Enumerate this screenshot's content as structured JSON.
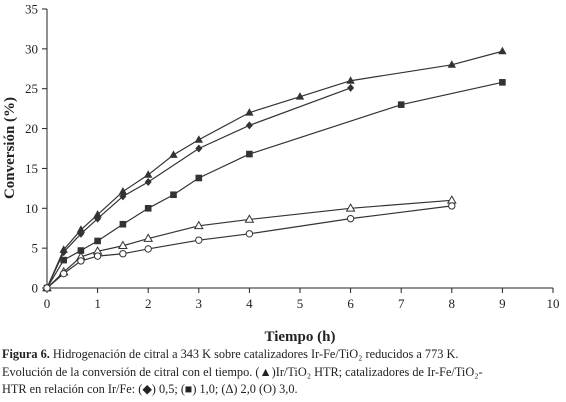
{
  "chart_data": {
    "type": "line",
    "title": "",
    "xlabel": "Tiempo (h)",
    "ylabel": "Conversión (%)",
    "xlim": [
      0,
      10
    ],
    "ylim": [
      0,
      35
    ],
    "x_ticks": [
      "0",
      "1",
      "2",
      "3",
      "4",
      "5",
      "6",
      "7",
      "8",
      "9",
      "10"
    ],
    "y_ticks": [
      "0",
      "5",
      "10",
      "15",
      "20",
      "25",
      "30",
      "35"
    ],
    "grid": false,
    "legend": "none",
    "series": [
      {
        "marker": "filled-triangle",
        "color": "#333333",
        "points": [
          [
            0,
            0
          ],
          [
            0.33,
            4.8
          ],
          [
            0.67,
            7.3
          ],
          [
            1,
            9.2
          ],
          [
            1.5,
            12.1
          ],
          [
            2,
            14.2
          ],
          [
            2.5,
            16.7
          ],
          [
            3,
            18.6
          ],
          [
            4,
            22.0
          ],
          [
            5,
            24.0
          ],
          [
            6,
            26.0
          ],
          [
            8,
            28.0
          ],
          [
            9,
            29.7
          ]
        ]
      },
      {
        "marker": "filled-diamond",
        "color": "#333333",
        "points": [
          [
            0,
            0
          ],
          [
            0.33,
            4.5
          ],
          [
            0.67,
            6.8
          ],
          [
            1,
            8.7
          ],
          [
            1.5,
            11.5
          ],
          [
            2,
            13.3
          ],
          [
            3,
            17.5
          ],
          [
            4,
            20.4
          ],
          [
            6,
            25.1
          ]
        ]
      },
      {
        "marker": "filled-square",
        "color": "#333333",
        "points": [
          [
            0,
            0
          ],
          [
            0.33,
            3.5
          ],
          [
            0.67,
            4.7
          ],
          [
            1,
            5.9
          ],
          [
            1.5,
            8.0
          ],
          [
            2,
            10.0
          ],
          [
            2.5,
            11.7
          ],
          [
            3,
            13.8
          ],
          [
            4,
            16.8
          ],
          [
            7,
            23.0
          ],
          [
            9,
            25.8
          ]
        ]
      },
      {
        "marker": "open-triangle",
        "color": "#333333",
        "points": [
          [
            0,
            0
          ],
          [
            0.33,
            2.0
          ],
          [
            0.67,
            3.9
          ],
          [
            1,
            4.6
          ],
          [
            1.5,
            5.3
          ],
          [
            2,
            6.2
          ],
          [
            3,
            7.8
          ],
          [
            4,
            8.6
          ],
          [
            6,
            10.0
          ],
          [
            8,
            11.0
          ]
        ]
      },
      {
        "marker": "open-circle",
        "color": "#333333",
        "points": [
          [
            0,
            0
          ],
          [
            0.33,
            1.8
          ],
          [
            0.67,
            3.4
          ],
          [
            1,
            4.0
          ],
          [
            1.5,
            4.3
          ],
          [
            2,
            4.9
          ],
          [
            3,
            6.0
          ],
          [
            4,
            6.8
          ],
          [
            6,
            8.7
          ],
          [
            8,
            10.3
          ]
        ]
      }
    ]
  },
  "caption": {
    "label": "Figura 6.",
    "line1": " Hidrogenación de citral a 343 K sobre catalizadores Ir-Fe/TiO₂ reducidos a 773 K.",
    "line2": "Evolución de la conversión de citral con el tiempo. (▲)Ir/TiO₂ HTR; catalizadores de Ir-Fe/TiO₂-",
    "line3": "HTR en relación con Ir/Fe:  (◆) 0,5; (■) 1,0; (Δ) 2,0 (O) 3,0."
  }
}
